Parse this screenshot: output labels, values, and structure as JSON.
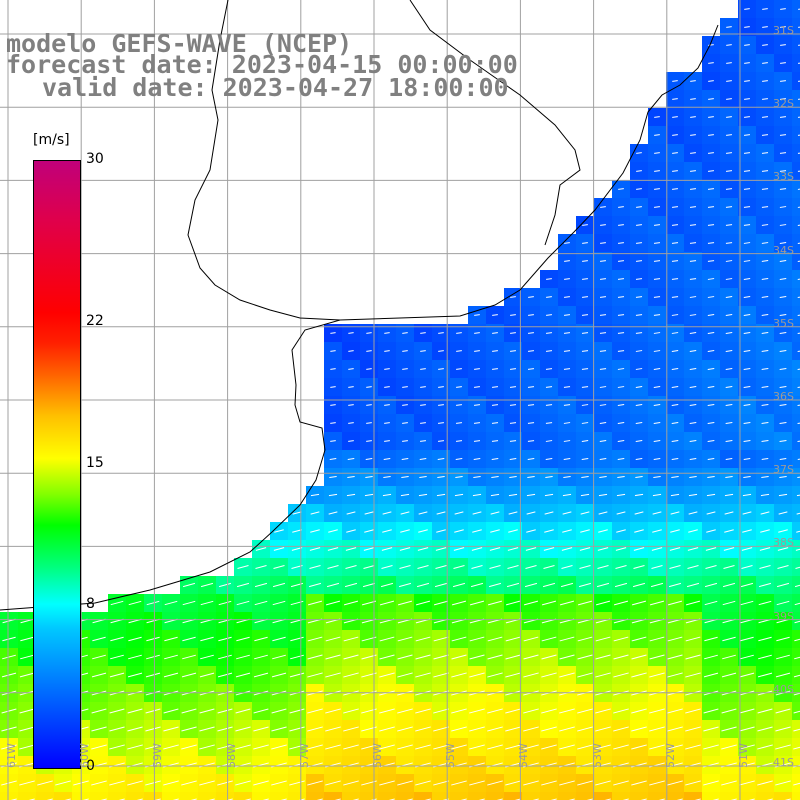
{
  "title": {
    "line1": "modelo GEFS-WAVE (NCEP)",
    "line2": "forecast date: 2023-04-15 00:00:00",
    "line3": "valid date: 2023-04-27 18:00:00"
  },
  "legend": {
    "unit": "[m/s]",
    "ticks": [
      {
        "label": "30",
        "value": 30
      },
      {
        "label": "22",
        "value": 22
      },
      {
        "label": "15",
        "value": 15
      },
      {
        "label": "8",
        "value": 8
      },
      {
        "label": "0",
        "value": 0
      }
    ]
  },
  "axes": {
    "lat_labels": [
      "31S",
      "32S",
      "33S",
      "34S",
      "35S",
      "36S",
      "37S",
      "38S",
      "39S",
      "40S",
      "41S"
    ],
    "lon_labels": [
      "61W",
      "60W",
      "59W",
      "58W",
      "57W",
      "56W",
      "55W",
      "54W",
      "53W",
      "52W",
      "51W"
    ]
  },
  "colors": {
    "land": "#ffffff",
    "coastline": "#000000",
    "grid": "#a0a0a0",
    "arrows": "#ffffff",
    "title_text": "#808080"
  }
}
